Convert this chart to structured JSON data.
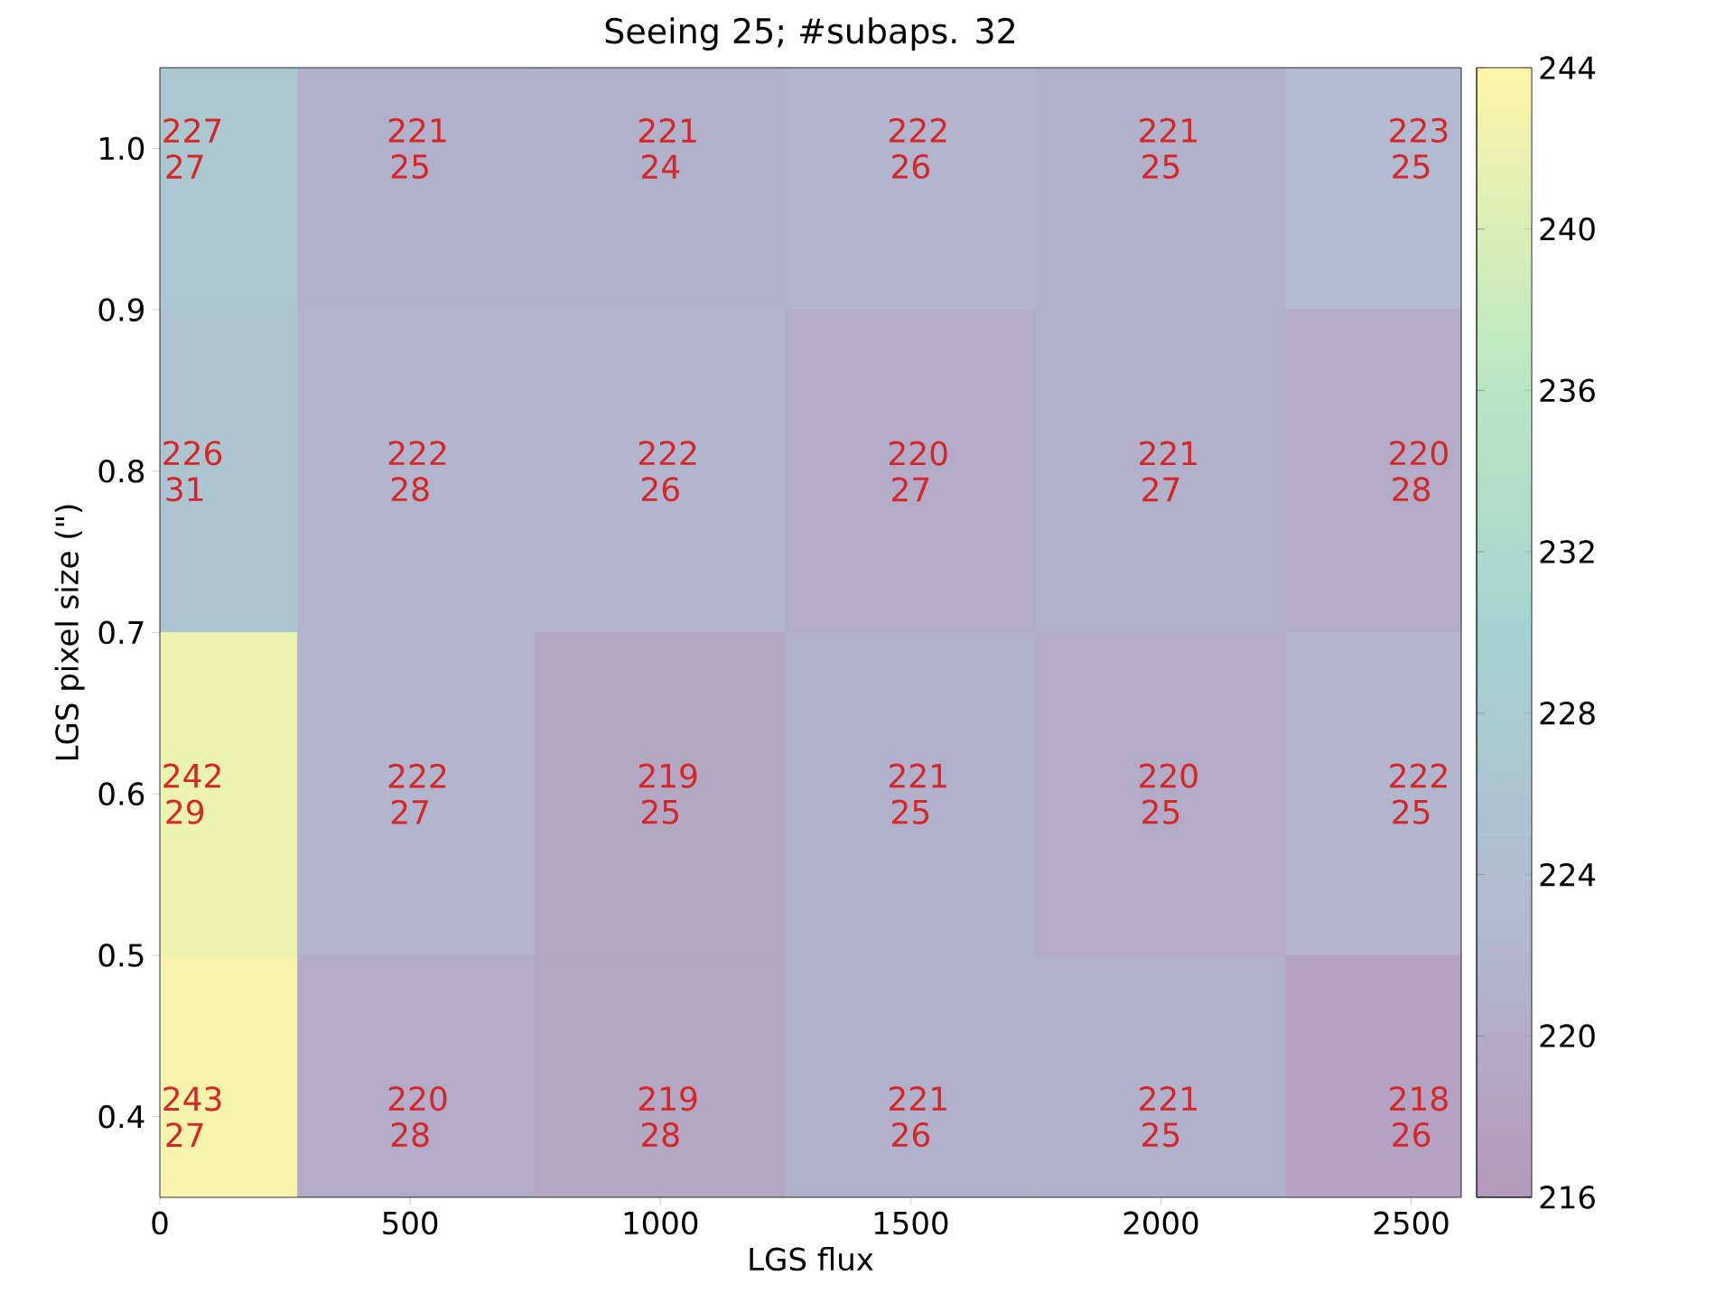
{
  "chart_data": {
    "type": "heatmap",
    "title": "Seeing 25; #subaps. 32",
    "xlabel": "LGS flux",
    "ylabel": "LGS pixel size (\")",
    "x": [
      50,
      500,
      1000,
      1500,
      2000,
      2500
    ],
    "y": [
      1.0,
      0.8,
      0.6,
      0.4
    ],
    "cells": [
      [
        227,
        221,
        221,
        222,
        221,
        223
      ],
      [
        226,
        222,
        222,
        220,
        221,
        220
      ],
      [
        242,
        222,
        219,
        221,
        220,
        222
      ],
      [
        243,
        220,
        219,
        221,
        221,
        218
      ]
    ],
    "cell_labels": [
      [
        "227 27",
        "221 25",
        "221 24",
        "222 26",
        "221 25",
        "223 25"
      ],
      [
        "226 31",
        "222 28",
        "222 26",
        "220 27",
        "221 27",
        "220 28"
      ],
      [
        "242 29",
        "222 27",
        "219 25",
        "221 25",
        "220 25",
        "222 25"
      ],
      [
        "243 27",
        "220 28",
        "219 28",
        "221 26",
        "221 25",
        "218 26"
      ]
    ],
    "xlim": [
      0,
      2600
    ],
    "xticks": [
      0,
      500,
      1000,
      1500,
      2000,
      2500
    ],
    "ylim": [
      0.35,
      1.05
    ],
    "yticks": [
      0.4,
      0.5,
      0.6,
      0.7,
      0.8,
      0.9,
      {
        "value": 1.0,
        "label": "1.0"
      }
    ],
    "clim": [
      216,
      244
    ],
    "cticks": [
      216,
      220,
      224,
      228,
      232,
      236,
      240,
      244
    ]
  }
}
